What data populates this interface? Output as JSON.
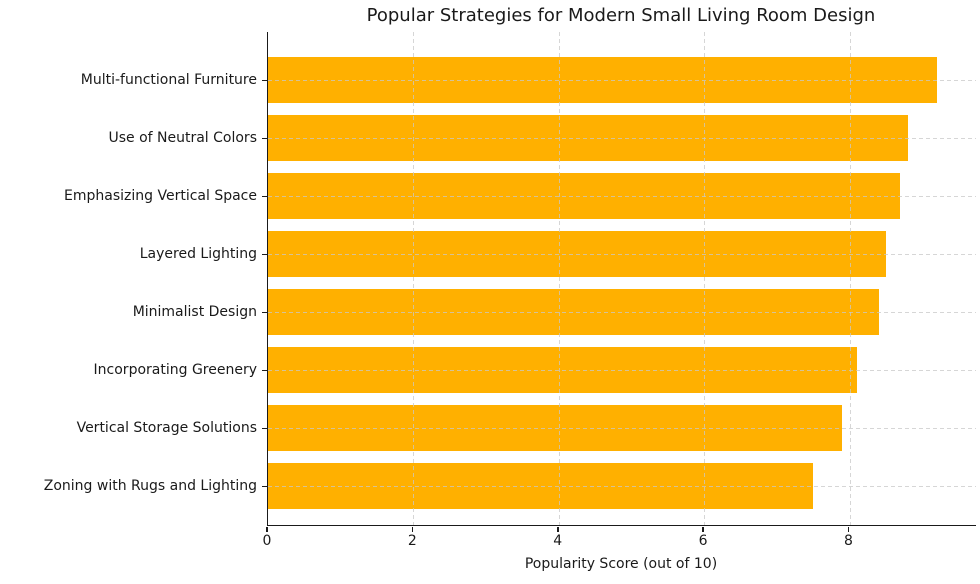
{
  "chart_data": {
    "type": "bar",
    "orientation": "horizontal",
    "title": "Popular Strategies for Modern Small Living Room Design",
    "xlabel": "Popularity Score (out of 10)",
    "ylabel": "",
    "categories": [
      "Multi-functional Furniture",
      "Use of Neutral Colors",
      "Emphasizing Vertical Space",
      "Layered Lighting",
      "Minimalist Design",
      "Incorporating Greenery",
      "Vertical Storage Solutions",
      "Zoning with Rugs and Lighting"
    ],
    "values": [
      9.2,
      8.8,
      8.7,
      8.5,
      8.4,
      8.1,
      7.9,
      7.5
    ],
    "xticks": [
      0,
      2,
      4,
      6,
      8
    ],
    "xlim": [
      0,
      9.74
    ],
    "grid": true,
    "grid_line_style": "dashed",
    "legend_position": "none",
    "colors": {
      "bar": "#FFB000",
      "grid": "#C8C8C8",
      "axis": "#1A1A1A",
      "text": "#1A1A1A",
      "background": "#FFFFFF"
    }
  }
}
